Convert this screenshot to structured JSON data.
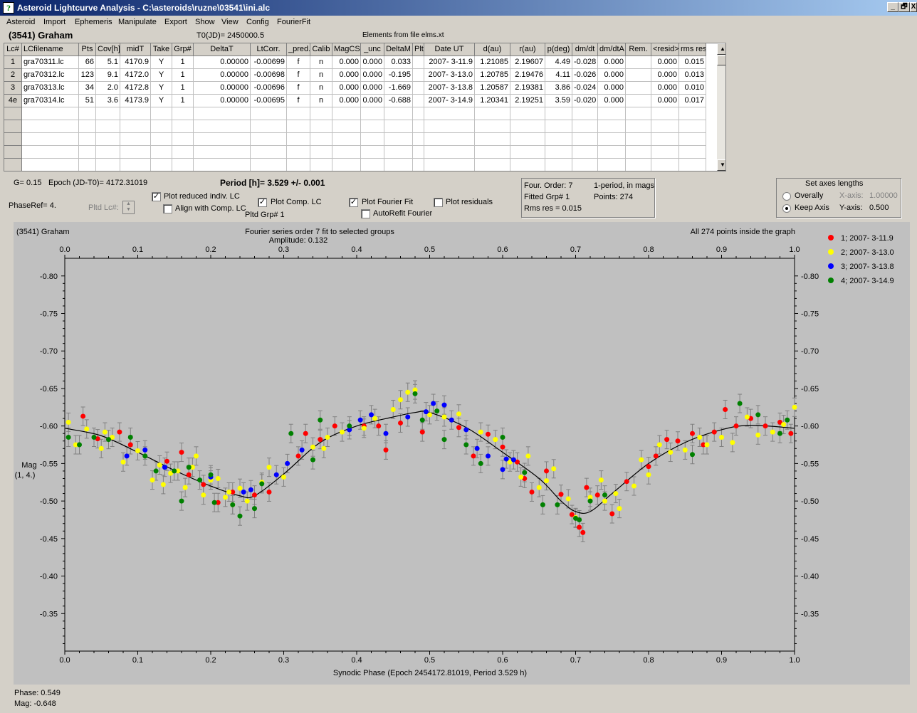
{
  "window": {
    "title": "Asteroid Lightcurve Analysis - C:\\asteroids\\ruzne\\03541\\ini.alc",
    "icon": "app-logo-icon",
    "controls": [
      "_",
      "🗗",
      "X"
    ]
  },
  "menu": [
    "Asteroid",
    "Import",
    "Ephemeris",
    "Manipulate",
    "Export",
    "Show",
    "View",
    "Config",
    "FourierFit"
  ],
  "header": {
    "asteroid": "(3541) Graham",
    "t0": "T0(JD)= 2450000.5",
    "elements": "Elements from file elms.xt"
  },
  "table": {
    "columns": [
      "Lc#",
      "LCfilename",
      "Pts",
      "Cov[h]",
      "midT",
      "Take",
      "Grp#",
      "DeltaT",
      "LtCorr.",
      "_pred.",
      "Calib",
      "MagCS",
      "_unc",
      "DeltaM",
      "Plt",
      "Date UT",
      "d(au)",
      "r(au)",
      "p(deg)",
      "dm/dt",
      "dm/dtA",
      "Rem.",
      "<resid>",
      "rms res"
    ],
    "rows": [
      [
        "1",
        "gra70311.lc",
        "66",
        "5.1",
        "4170.9",
        "Y",
        "1",
        "0.00000",
        "-0.00699",
        "f",
        "n",
        "0.000",
        "0.000",
        "0.033",
        "",
        "2007- 3-11.9",
        "1.21085",
        "2.19607",
        "4.49",
        "-0.028",
        "0.000",
        "",
        "0.000",
        "0.015"
      ],
      [
        "2",
        "gra70312.lc",
        "123",
        "9.1",
        "4172.0",
        "Y",
        "1",
        "0.00000",
        "-0.00698",
        "f",
        "n",
        "0.000",
        "0.000",
        "-0.195",
        "",
        "2007- 3-13.0",
        "1.20785",
        "2.19476",
        "4.11",
        "-0.026",
        "0.000",
        "",
        "0.000",
        "0.013"
      ],
      [
        "3",
        "gra70313.lc",
        "34",
        "2.0",
        "4172.8",
        "Y",
        "1",
        "0.00000",
        "-0.00696",
        "f",
        "n",
        "0.000",
        "0.000",
        "-1.669",
        "",
        "2007- 3-13.8",
        "1.20587",
        "2.19381",
        "3.86",
        "-0.024",
        "0.000",
        "",
        "0.000",
        "0.010"
      ],
      [
        "4e",
        "gra70314.lc",
        "51",
        "3.6",
        "4173.9",
        "Y",
        "1",
        "0.00000",
        "-0.00695",
        "f",
        "n",
        "0.000",
        "0.000",
        "-0.688",
        "",
        "2007- 3-14.9",
        "1.20341",
        "2.19251",
        "3.59",
        "-0.020",
        "0.000",
        "",
        "0.000",
        "0.017"
      ]
    ]
  },
  "controls": {
    "g": "G= 0.15",
    "epoch": "Epoch (JD-T0)= 4172.31019",
    "period": "Period [h]= 3.529 +/- 0.001",
    "phaseref": "PhaseRef= 4.",
    "pltd_lc": "Pltd Lc#:",
    "pltd_grp": "Pltd Grp#  1",
    "plot_reduced": "Plot reduced indiv. LC",
    "align": "Align with Comp. LC",
    "plot_comp": "Plot Comp. LC",
    "plot_fourier": "Plot Fourier Fit",
    "autorefit": "AutoRefit Fourier",
    "plot_residuals": "Plot residuals",
    "checks": {
      "plot_reduced": true,
      "align": false,
      "plot_comp": true,
      "plot_fourier": true,
      "autorefit": false,
      "plot_residuals": false
    }
  },
  "fourier_info": {
    "order": "Four. Order:  7",
    "mode": "1-period, in mags",
    "grp": "Fitted Grp# 1",
    "points": "Points: 274",
    "rms": "Rms res      = 0.015"
  },
  "axes_panel": {
    "title": "Set axes lengths",
    "overally": "Overally",
    "keep": "Keep Axis",
    "xaxis_label": "X-axis:",
    "xaxis_value": "1.00000",
    "yaxis_label": "Y-axis:",
    "yaxis_value": "0.500",
    "selected": "keep"
  },
  "chart_data": {
    "type": "scatter",
    "title": "Fourier series order 7 fit to selected groups",
    "subtitle": "Amplitude: 0.132",
    "corner_left": "(3541) Graham",
    "corner_right": "All 274 points inside the graph",
    "xlabel": "Synodic Phase (Epoch 2454172.81019, Period 3.529 h)",
    "ylabel": "Mag",
    "ylabel2": "(1, 4.)",
    "xlim": [
      0,
      1
    ],
    "ylim": [
      -0.8,
      -0.3
    ],
    "y_inverted": true,
    "x_ticks": [
      "0.0",
      "0.1",
      "0.2",
      "0.3",
      "0.4",
      "0.5",
      "0.6",
      "0.7",
      "0.8",
      "0.9",
      "1.0"
    ],
    "y_ticks": [
      "-0.80",
      "-0.75",
      "-0.70",
      "-0.65",
      "-0.60",
      "-0.55",
      "-0.50",
      "-0.45",
      "-0.40",
      "-0.35"
    ],
    "legend": "top-right",
    "series": [
      {
        "name": "1; 2007- 3-11.9",
        "color": "#ff0000",
        "points": [
          [
            0.025,
            -0.613
          ],
          [
            0.045,
            -0.583
          ],
          [
            0.075,
            -0.592
          ],
          [
            0.09,
            -0.575
          ],
          [
            0.14,
            -0.553
          ],
          [
            0.16,
            -0.565
          ],
          [
            0.17,
            -0.535
          ],
          [
            0.19,
            -0.522
          ],
          [
            0.21,
            -0.498
          ],
          [
            0.23,
            -0.512
          ],
          [
            0.26,
            -0.508
          ],
          [
            0.28,
            -0.512
          ],
          [
            0.32,
            -0.56
          ],
          [
            0.33,
            -0.59
          ],
          [
            0.35,
            -0.582
          ],
          [
            0.37,
            -0.6
          ],
          [
            0.41,
            -0.6
          ],
          [
            0.43,
            -0.6
          ],
          [
            0.44,
            -0.568
          ],
          [
            0.46,
            -0.604
          ],
          [
            0.49,
            -0.592
          ],
          [
            0.54,
            -0.598
          ],
          [
            0.56,
            -0.56
          ],
          [
            0.58,
            -0.589
          ],
          [
            0.6,
            -0.572
          ],
          [
            0.62,
            -0.552
          ],
          [
            0.63,
            -0.53
          ],
          [
            0.64,
            -0.512
          ],
          [
            0.66,
            -0.54
          ],
          [
            0.68,
            -0.509
          ],
          [
            0.695,
            -0.482
          ],
          [
            0.705,
            -0.465
          ],
          [
            0.71,
            -0.458
          ],
          [
            0.715,
            -0.518
          ],
          [
            0.73,
            -0.508
          ],
          [
            0.75,
            -0.483
          ],
          [
            0.77,
            -0.526
          ],
          [
            0.8,
            -0.546
          ],
          [
            0.81,
            -0.56
          ],
          [
            0.825,
            -0.582
          ],
          [
            0.84,
            -0.58
          ],
          [
            0.86,
            -0.59
          ],
          [
            0.875,
            -0.575
          ],
          [
            0.89,
            -0.592
          ],
          [
            0.905,
            -0.622
          ],
          [
            0.92,
            -0.6
          ],
          [
            0.94,
            -0.61
          ],
          [
            0.96,
            -0.6
          ],
          [
            0.98,
            -0.605
          ],
          [
            0.995,
            -0.59
          ]
        ]
      },
      {
        "name": "2; 2007- 3-13.0",
        "color": "#ffff00",
        "points": [
          [
            0.005,
            -0.605
          ],
          [
            0.015,
            -0.575
          ],
          [
            0.03,
            -0.596
          ],
          [
            0.05,
            -0.57
          ],
          [
            0.055,
            -0.592
          ],
          [
            0.065,
            -0.585
          ],
          [
            0.08,
            -0.552
          ],
          [
            0.1,
            -0.567
          ],
          [
            0.12,
            -0.528
          ],
          [
            0.13,
            -0.548
          ],
          [
            0.135,
            -0.522
          ],
          [
            0.145,
            -0.537
          ],
          [
            0.155,
            -0.54
          ],
          [
            0.165,
            -0.518
          ],
          [
            0.175,
            -0.545
          ],
          [
            0.18,
            -0.56
          ],
          [
            0.19,
            -0.508
          ],
          [
            0.2,
            -0.528
          ],
          [
            0.21,
            -0.53
          ],
          [
            0.22,
            -0.505
          ],
          [
            0.225,
            -0.512
          ],
          [
            0.23,
            -0.495
          ],
          [
            0.24,
            -0.517
          ],
          [
            0.25,
            -0.5
          ],
          [
            0.27,
            -0.525
          ],
          [
            0.28,
            -0.545
          ],
          [
            0.3,
            -0.532
          ],
          [
            0.34,
            -0.572
          ],
          [
            0.355,
            -0.57
          ],
          [
            0.36,
            -0.585
          ],
          [
            0.38,
            -0.592
          ],
          [
            0.41,
            -0.597
          ],
          [
            0.425,
            -0.61
          ],
          [
            0.45,
            -0.622
          ],
          [
            0.46,
            -0.635
          ],
          [
            0.47,
            -0.645
          ],
          [
            0.48,
            -0.648
          ],
          [
            0.5,
            -0.615
          ],
          [
            0.52,
            -0.612
          ],
          [
            0.54,
            -0.616
          ],
          [
            0.57,
            -0.592
          ],
          [
            0.59,
            -0.582
          ],
          [
            0.61,
            -0.552
          ],
          [
            0.625,
            -0.532
          ],
          [
            0.635,
            -0.56
          ],
          [
            0.65,
            -0.518
          ],
          [
            0.66,
            -0.527
          ],
          [
            0.67,
            -0.543
          ],
          [
            0.69,
            -0.503
          ],
          [
            0.7,
            -0.478
          ],
          [
            0.72,
            -0.505
          ],
          [
            0.735,
            -0.528
          ],
          [
            0.74,
            -0.5
          ],
          [
            0.755,
            -0.51
          ],
          [
            0.76,
            -0.49
          ],
          [
            0.78,
            -0.52
          ],
          [
            0.79,
            -0.555
          ],
          [
            0.8,
            -0.535
          ],
          [
            0.815,
            -0.575
          ],
          [
            0.83,
            -0.565
          ],
          [
            0.85,
            -0.568
          ],
          [
            0.87,
            -0.585
          ],
          [
            0.88,
            -0.575
          ],
          [
            0.9,
            -0.585
          ],
          [
            0.915,
            -0.578
          ],
          [
            0.935,
            -0.612
          ],
          [
            0.95,
            -0.588
          ],
          [
            0.97,
            -0.592
          ],
          [
            0.985,
            -0.602
          ],
          [
            1.0,
            -0.625
          ]
        ]
      },
      {
        "name": "3; 2007- 3-13.8",
        "color": "#0000ff",
        "points": [
          [
            0.085,
            -0.56
          ],
          [
            0.11,
            -0.568
          ],
          [
            0.137,
            -0.545
          ],
          [
            0.2,
            -0.532
          ],
          [
            0.245,
            -0.512
          ],
          [
            0.255,
            -0.515
          ],
          [
            0.29,
            -0.535
          ],
          [
            0.305,
            -0.55
          ],
          [
            0.325,
            -0.568
          ],
          [
            0.39,
            -0.595
          ],
          [
            0.405,
            -0.608
          ],
          [
            0.42,
            -0.615
          ],
          [
            0.44,
            -0.59
          ],
          [
            0.47,
            -0.612
          ],
          [
            0.495,
            -0.619
          ],
          [
            0.505,
            -0.63
          ],
          [
            0.52,
            -0.628
          ],
          [
            0.53,
            -0.608
          ],
          [
            0.55,
            -0.595
          ],
          [
            0.565,
            -0.57
          ],
          [
            0.58,
            -0.56
          ],
          [
            0.6,
            -0.542
          ],
          [
            0.605,
            -0.556
          ],
          [
            0.615,
            -0.555
          ]
        ]
      },
      {
        "name": "4; 2007- 3-14.9",
        "color": "#008000",
        "points": [
          [
            0.005,
            -0.585
          ],
          [
            0.02,
            -0.575
          ],
          [
            0.04,
            -0.585
          ],
          [
            0.06,
            -0.582
          ],
          [
            0.09,
            -0.585
          ],
          [
            0.11,
            -0.56
          ],
          [
            0.125,
            -0.54
          ],
          [
            0.15,
            -0.54
          ],
          [
            0.16,
            -0.5
          ],
          [
            0.17,
            -0.545
          ],
          [
            0.185,
            -0.528
          ],
          [
            0.2,
            -0.535
          ],
          [
            0.205,
            -0.498
          ],
          [
            0.23,
            -0.495
          ],
          [
            0.24,
            -0.48
          ],
          [
            0.26,
            -0.49
          ],
          [
            0.27,
            -0.523
          ],
          [
            0.31,
            -0.59
          ],
          [
            0.34,
            -0.555
          ],
          [
            0.35,
            -0.608
          ],
          [
            0.39,
            -0.6
          ],
          [
            0.48,
            -0.643
          ],
          [
            0.49,
            -0.608
          ],
          [
            0.51,
            -0.62
          ],
          [
            0.52,
            -0.582
          ],
          [
            0.55,
            -0.575
          ],
          [
            0.57,
            -0.55
          ],
          [
            0.6,
            -0.585
          ],
          [
            0.63,
            -0.538
          ],
          [
            0.655,
            -0.495
          ],
          [
            0.675,
            -0.495
          ],
          [
            0.7,
            -0.477
          ],
          [
            0.705,
            -0.475
          ],
          [
            0.72,
            -0.5
          ],
          [
            0.74,
            -0.508
          ],
          [
            0.86,
            -0.562
          ],
          [
            0.925,
            -0.63
          ],
          [
            0.95,
            -0.615
          ],
          [
            0.98,
            -0.59
          ],
          [
            0.99,
            -0.608
          ]
        ]
      }
    ],
    "fit": [
      [
        0.0,
        -0.597
      ],
      [
        0.05,
        -0.587
      ],
      [
        0.1,
        -0.565
      ],
      [
        0.15,
        -0.541
      ],
      [
        0.2,
        -0.52
      ],
      [
        0.24,
        -0.507
      ],
      [
        0.26,
        -0.507
      ],
      [
        0.3,
        -0.536
      ],
      [
        0.35,
        -0.578
      ],
      [
        0.4,
        -0.6
      ],
      [
        0.45,
        -0.612
      ],
      [
        0.48,
        -0.618
      ],
      [
        0.5,
        -0.618
      ],
      [
        0.55,
        -0.598
      ],
      [
        0.6,
        -0.565
      ],
      [
        0.65,
        -0.53
      ],
      [
        0.68,
        -0.5
      ],
      [
        0.7,
        -0.486
      ],
      [
        0.72,
        -0.486
      ],
      [
        0.75,
        -0.51
      ],
      [
        0.8,
        -0.55
      ],
      [
        0.85,
        -0.578
      ],
      [
        0.9,
        -0.595
      ],
      [
        0.94,
        -0.601
      ],
      [
        1.0,
        -0.597
      ]
    ]
  },
  "status": {
    "phase": "Phase:  0.549",
    "mag": "Mag:    -0.648"
  }
}
